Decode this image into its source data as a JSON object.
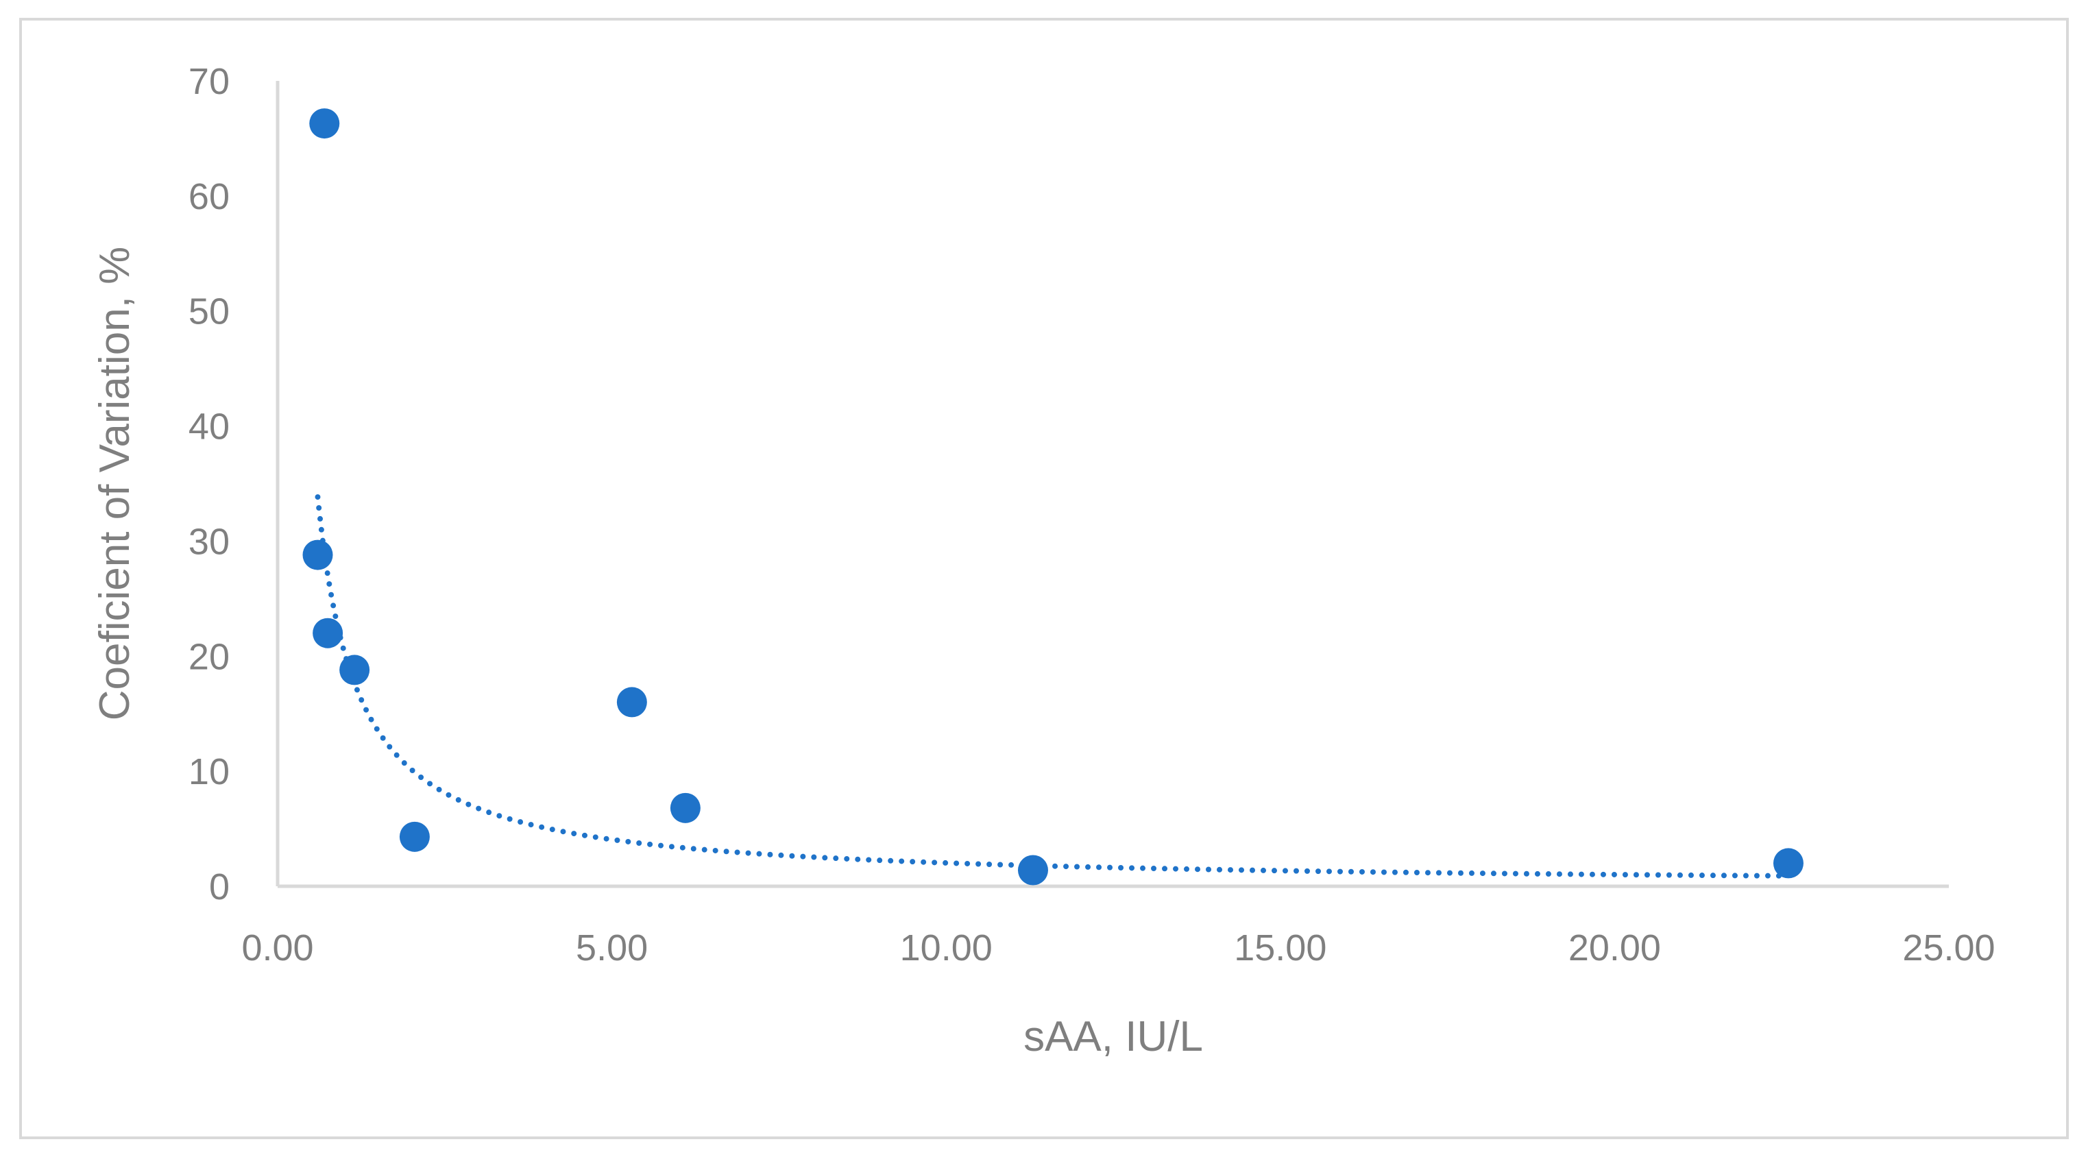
{
  "chart_data": {
    "type": "scatter",
    "title": "",
    "xlabel": "sAA, IU/L",
    "ylabel": "Coeficient of Variation, %",
    "xlim": [
      0,
      25
    ],
    "ylim": [
      0,
      70
    ],
    "x_ticks": [
      "0.00",
      "5.00",
      "10.00",
      "15.00",
      "20.00",
      "25.00"
    ],
    "y_ticks": [
      "0",
      "10",
      "20",
      "30",
      "40",
      "50",
      "60",
      "70"
    ],
    "grid": false,
    "legend": "none",
    "series": [
      {
        "points": [
          {
            "x": 0.7,
            "y": 66.3
          },
          {
            "x": 0.6,
            "y": 28.8
          },
          {
            "x": 0.75,
            "y": 22.0
          },
          {
            "x": 1.15,
            "y": 18.8
          },
          {
            "x": 2.05,
            "y": 4.3
          },
          {
            "x": 5.3,
            "y": 16.0
          },
          {
            "x": 6.1,
            "y": 6.8
          },
          {
            "x": 11.3,
            "y": 1.4
          },
          {
            "x": 22.6,
            "y": 2.0
          }
        ],
        "color": "#1f73c9"
      }
    ],
    "trendline": {
      "type": "power",
      "style": "dotted",
      "color": "#1f73c9",
      "a": 20.3,
      "b": -1.0,
      "x_range": [
        0.6,
        22.6
      ]
    }
  }
}
